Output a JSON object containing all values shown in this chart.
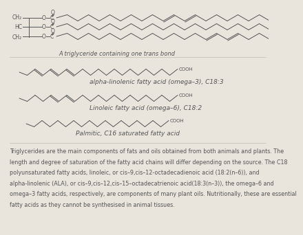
{
  "background_color": "#e9e5dd",
  "line_color": "#555555",
  "body_fontsize": 5.8,
  "label_fontsize": 6.5,
  "glycerol_fontsize": 5.5,
  "chain1_label": "alpha-linolenic fatty acid (omega–3), C18:3",
  "chain2_label": "Linoleic fatty acid (omega–6), C18:2",
  "chain3_label": "Palmitic, C16 saturated fatty acid",
  "triglyceride_label": "A triglyceride containing one trans bond",
  "paragraph_line1": "Triglycerides are the main components of fats and oils obtained from both animals and plants. The",
  "paragraph_line2": "length and degree of saturation of the fatty acid chains will differ depending on the source. The C18",
  "paragraph_line3": "polyunsaturated fatty acids, linoleic, or cis–9,cis–12-octadecadienoic acid (18:2(n–6)), and",
  "paragraph_line4": "alpha-linolenic (ALA), or cis–9,cis–12,cis–15–octadecatrienoic acid(18:3(n–3)), the omega–6 and",
  "paragraph_line5": "omega–3 fatty acids, respectively, are components of many plant oils. Nutritionally, these are essential",
  "paragraph_line6": "fatty acids as they cannot be synthesised in animal tissues."
}
